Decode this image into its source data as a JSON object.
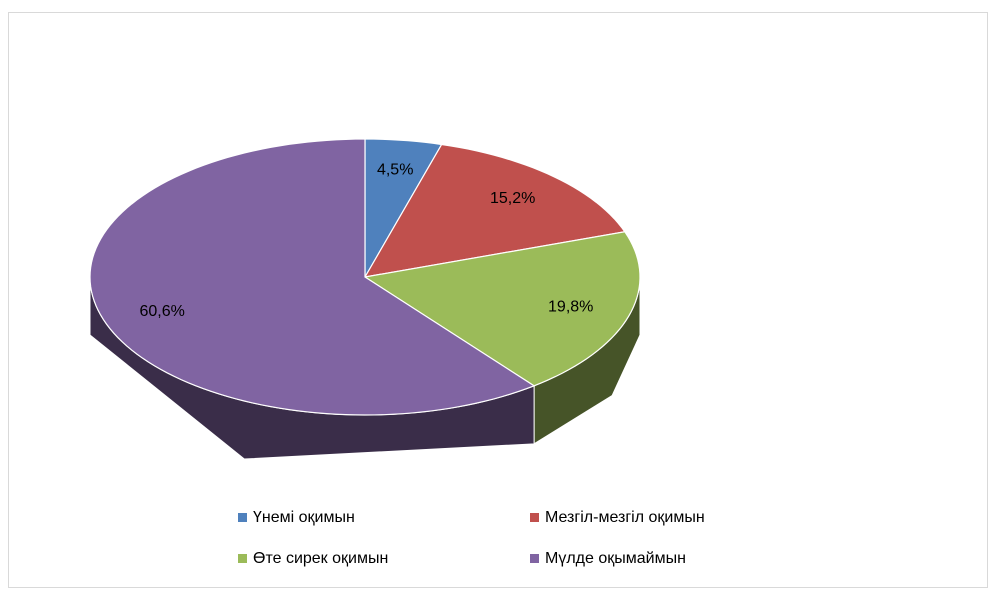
{
  "chart_data": {
    "type": "pie",
    "three_d": true,
    "categories": [
      "Үнемі оқимын",
      "Мезгіл-мезгіл оқимын",
      "Өте сирек оқимын",
      "Мүлде оқымаймын"
    ],
    "values": [
      4.5,
      15.2,
      19.8,
      60.6
    ],
    "value_labels": [
      "4,5%",
      "15,2%",
      "19,8%",
      "60,6%"
    ],
    "colors": [
      "#4f81bd",
      "#c0504d",
      "#9bbb59",
      "#8064a2"
    ],
    "legend": "bottom"
  }
}
